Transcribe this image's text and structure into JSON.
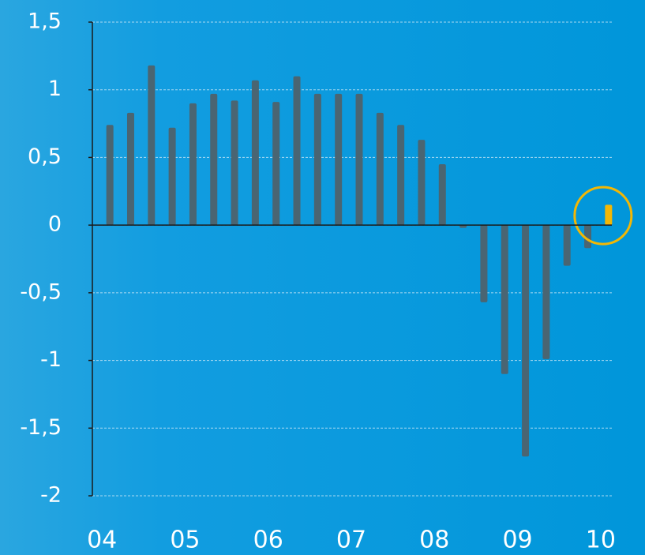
{
  "chart_data": {
    "type": "bar",
    "categories": [
      "04",
      null,
      null,
      null,
      "05",
      null,
      null,
      null,
      "06",
      null,
      null,
      null,
      "07",
      null,
      null,
      null,
      "08",
      null,
      null,
      null,
      "09",
      null,
      null,
      null,
      "10"
    ],
    "values": [
      0.74,
      0.83,
      1.18,
      0.72,
      0.9,
      0.97,
      0.92,
      1.07,
      0.91,
      1.1,
      0.97,
      0.97,
      0.97,
      0.83,
      0.74,
      0.63,
      0.45,
      -0.02,
      -0.57,
      -1.1,
      -1.71,
      -0.99,
      -0.3,
      -0.17,
      0.15
    ],
    "colors": [
      "#4a6572",
      "#4a6572",
      "#4a6572",
      "#4a6572",
      "#4a6572",
      "#4a6572",
      "#4a6572",
      "#4a6572",
      "#4a6572",
      "#4a6572",
      "#4a6572",
      "#4a6572",
      "#4a6572",
      "#4a6572",
      "#4a6572",
      "#4a6572",
      "#4a6572",
      "#4a6572",
      "#4a6572",
      "#4a6572",
      "#4a6572",
      "#4a6572",
      "#4a6572",
      "#4a6572",
      "#f2b705"
    ],
    "ylim": [
      -2,
      1.5
    ],
    "yticks": [
      -2,
      {
        "value": -1.5,
        "label": "-1,5"
      },
      -1,
      {
        "value": -0.5,
        "label": "-0,5"
      },
      0,
      {
        "value": 0.5,
        "label": "0,5"
      },
      1,
      {
        "value": 1.5,
        "label": "1,5"
      }
    ],
    "grid": true
  }
}
